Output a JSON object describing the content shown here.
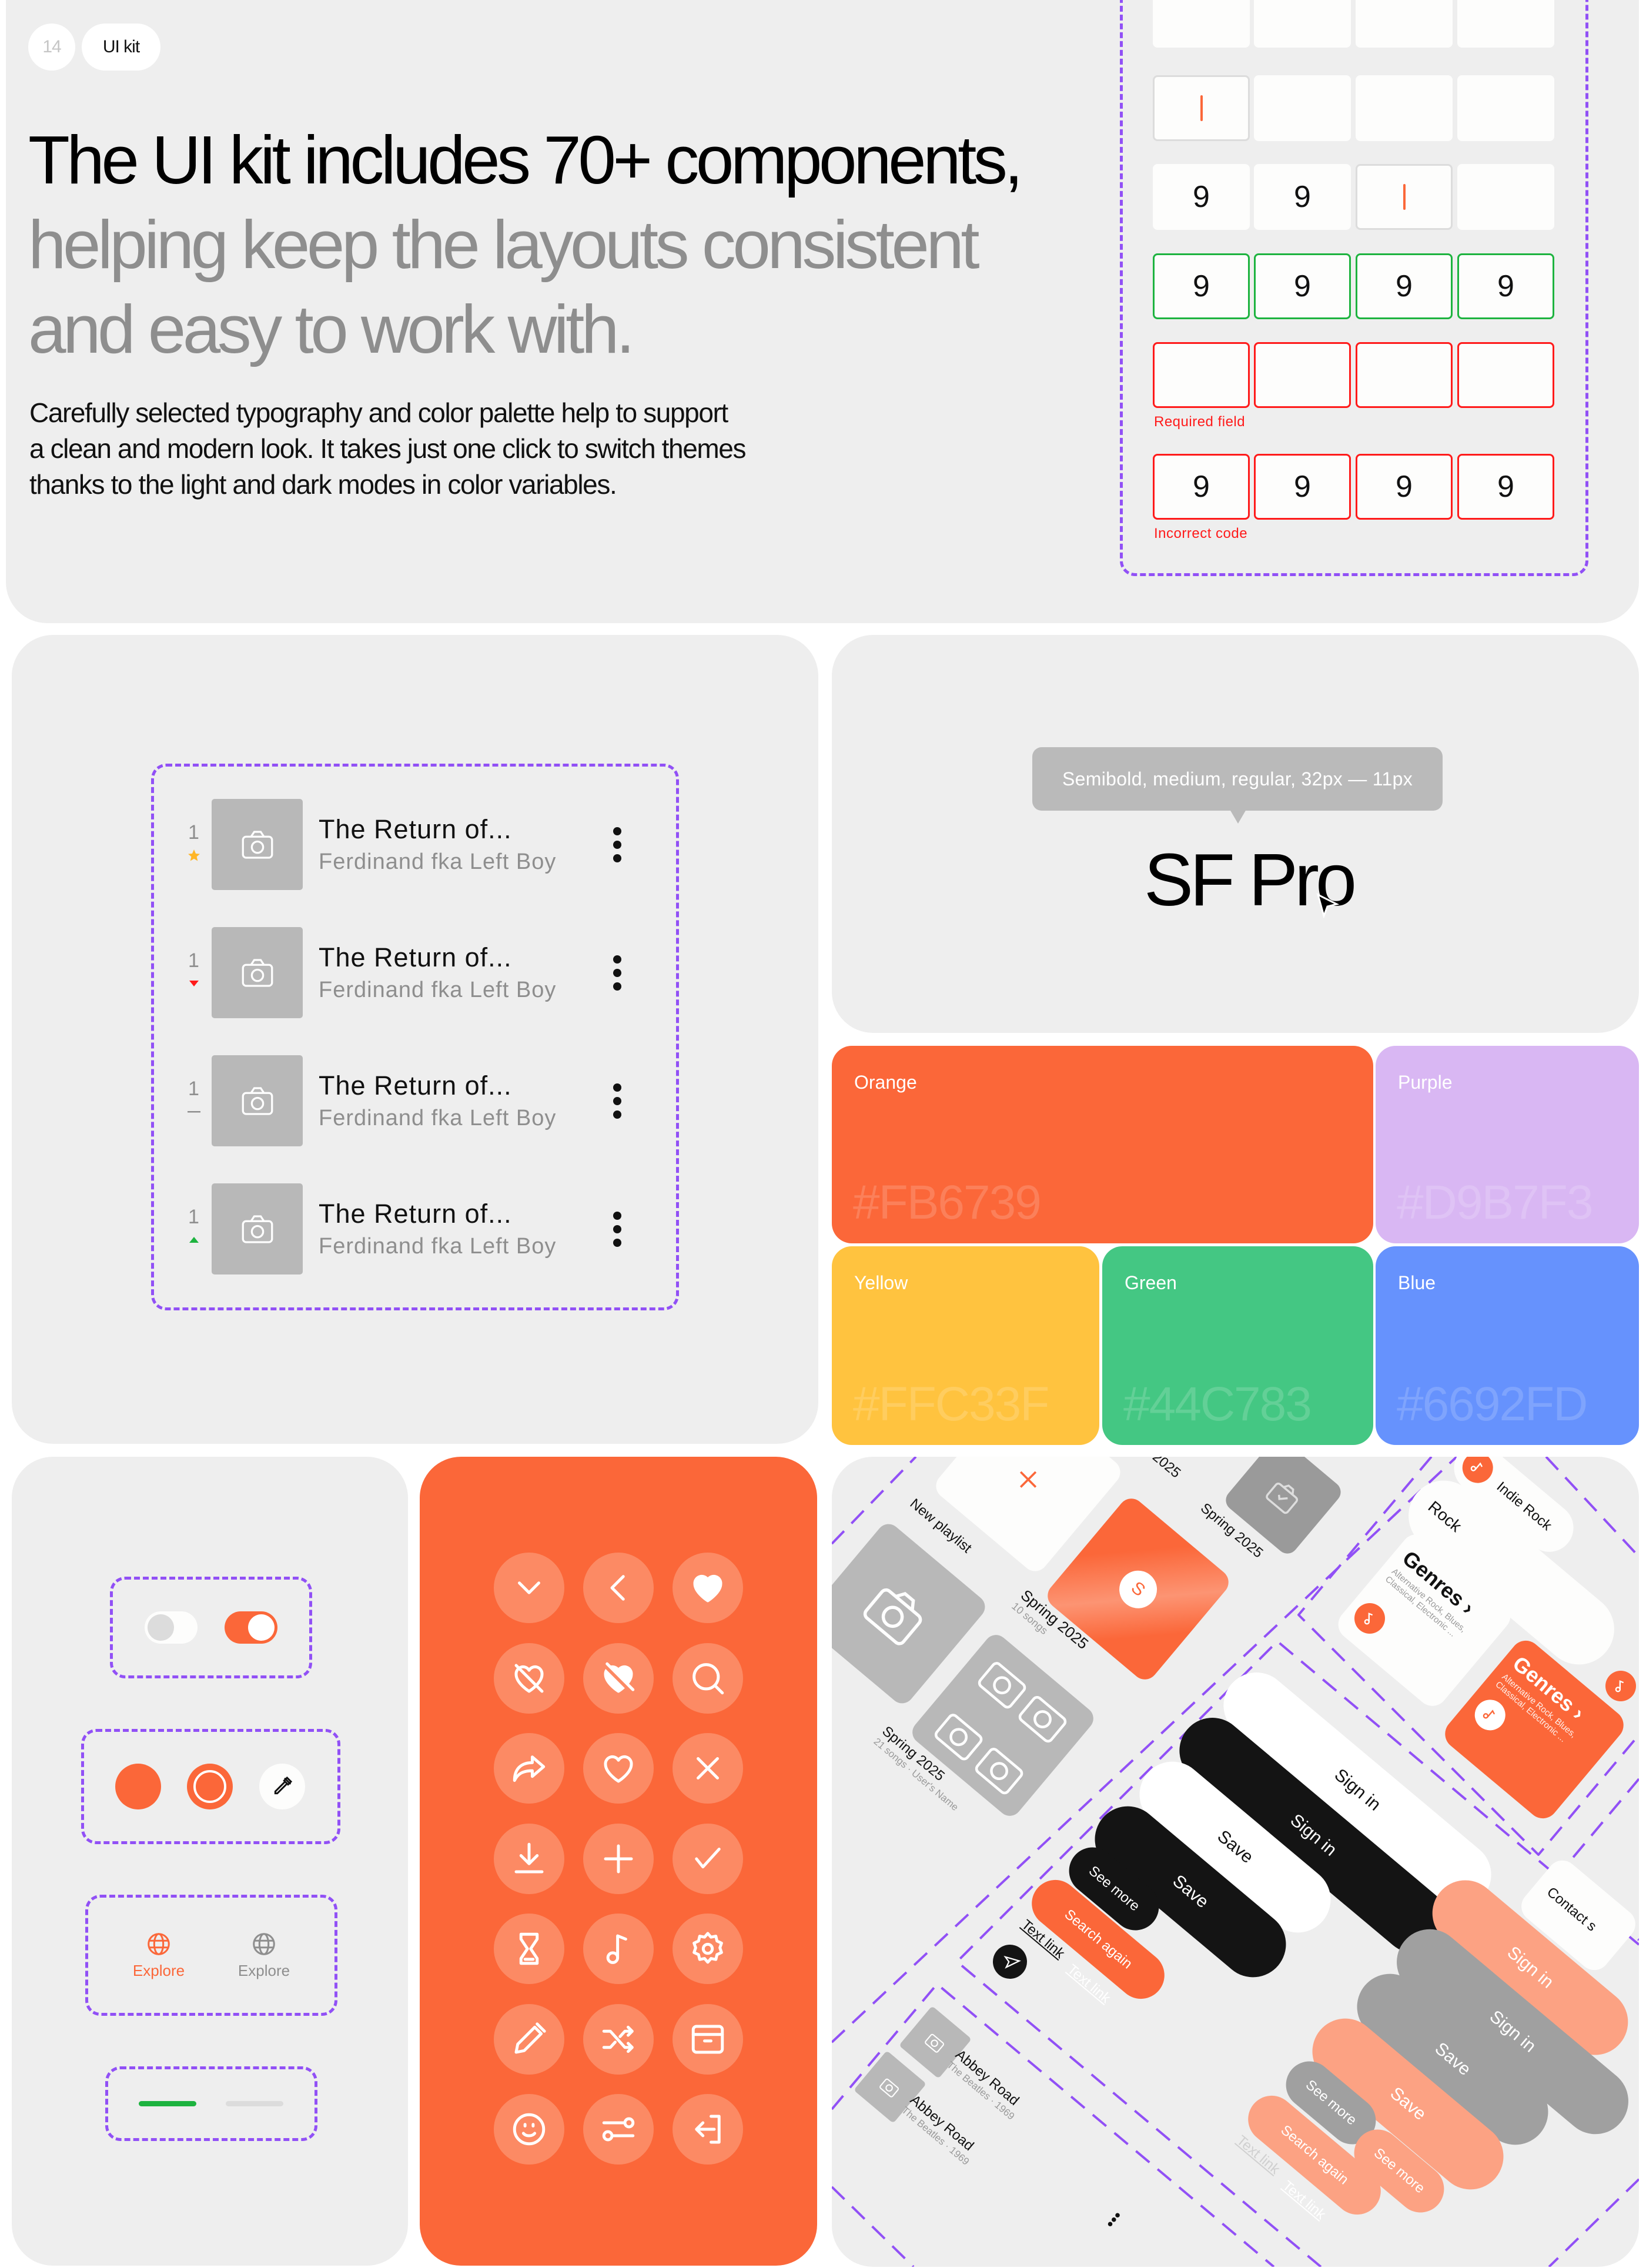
{
  "header": {
    "page_number": "14",
    "section_label": "UI kit",
    "headline_line1": "The UI kit includes 70+ components,",
    "headline_line2": "helping keep the layouts consistent",
    "headline_line3": "and easy to work with.",
    "body_line1": "Carefully selected typography and color palette help to support",
    "body_line2": "a clean and modern look. It takes just one click to switch themes",
    "body_line3": "thanks to the light and dark modes in color variables."
  },
  "otp": {
    "rows": [
      {
        "state": "empty",
        "cells": [
          "",
          "",
          "",
          ""
        ]
      },
      {
        "state": "focus",
        "cells": [
          "",
          "",
          "",
          ""
        ],
        "cursor": 0
      },
      {
        "state": "typing",
        "cells": [
          "9",
          "9",
          "",
          ""
        ],
        "cursor": 2
      },
      {
        "state": "success",
        "cells": [
          "9",
          "9",
          "9",
          "9"
        ]
      },
      {
        "state": "error",
        "cells": [
          "",
          "",
          "",
          ""
        ],
        "message": "Required field"
      },
      {
        "state": "error",
        "cells": [
          "9",
          "9",
          "9",
          "9"
        ],
        "message": "Incorrect code"
      }
    ]
  },
  "track_list": {
    "items": [
      {
        "rank": "1",
        "trend": "star",
        "title": "The Return of...",
        "artist": "Ferdinand fka Left Boy"
      },
      {
        "rank": "1",
        "trend": "down",
        "title": "The Return of...",
        "artist": "Ferdinand fka Left Boy"
      },
      {
        "rank": "1",
        "trend": "same",
        "title": "The Return of...",
        "artist": "Ferdinand fka Left Boy"
      },
      {
        "rank": "1",
        "trend": "up",
        "title": "The Return of...",
        "artist": "Ferdinand fka Left Boy"
      }
    ]
  },
  "typography": {
    "tooltip": "Semibold, medium, regular, 32px — 11px",
    "font_name": "SF Pro"
  },
  "palette": [
    {
      "name": "Orange",
      "hex": "#FB6739"
    },
    {
      "name": "Purple",
      "hex": "#D9B7F3"
    },
    {
      "name": "Yellow",
      "hex": "#FFC33F"
    },
    {
      "name": "Green",
      "hex": "#44C783"
    },
    {
      "name": "Blue",
      "hex": "#6692FD"
    }
  ],
  "controls": {
    "toggle_off": false,
    "toggle_on": true,
    "tab_active_label": "Explore",
    "tab_inactive_label": "Explore",
    "accent": "#FB6739",
    "success": "#1DB33F",
    "error": "#FF1A1A",
    "dashed_outline": "#9150F6"
  },
  "icons": [
    "chevron-down",
    "chevron-left",
    "heart-filled",
    "heart-off",
    "heart-off-filled",
    "search",
    "share",
    "heart",
    "close",
    "download",
    "plus",
    "check",
    "hourglass",
    "music-note",
    "settings",
    "pencil",
    "shuffle",
    "archive",
    "smile",
    "sliders",
    "log-in"
  ],
  "collage": {
    "new_playlist": "New playlist",
    "playlist_title": "Spring 2025",
    "playlist_songs": "10 songs",
    "playlist2_meta": "21 songs · User's Name",
    "playlist_initial": "S",
    "chip_indie": "Indie Rock",
    "chip_rock": "Rock",
    "genres_title": "Genres ›",
    "genres_desc": "Alternative Rock, Blues, Classical, Electronic ...",
    "contact": "Contact s",
    "sign_in": "Sign in",
    "save": "Save",
    "see_more": "See more",
    "search_again": "Search again",
    "text_link": "Text link",
    "album": "Abbey Road",
    "album_meta": "The Beatles · 1969"
  }
}
